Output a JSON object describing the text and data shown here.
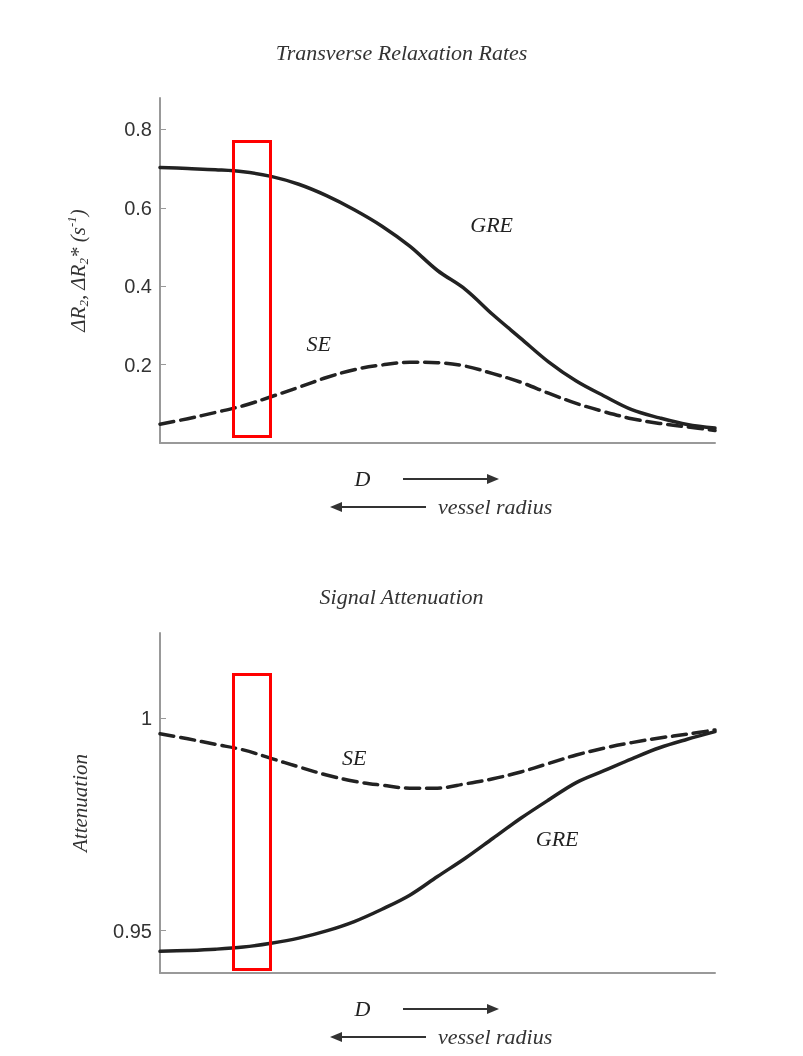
{
  "chart_data": [
    {
      "type": "line",
      "title": "Transverse Relaxation Rates",
      "xlabel": "D",
      "ylabel": "ΔR$_{2}$, ΔR$_{2}$* (s$^{-1}$)",
      "annotations": [
        "vessel radius"
      ],
      "categories": [
        null,
        null,
        null,
        null,
        null,
        null,
        null,
        null,
        null,
        null,
        null,
        null,
        null,
        null,
        null,
        null,
        null,
        null,
        null,
        null,
        null
      ],
      "series": [
        {
          "name": "GRE",
          "color": "#222222",
          "line_style": "solid",
          "values": [
            0.703,
            0.7,
            0.697,
            0.692,
            0.68,
            0.66,
            0.631,
            0.595,
            0.553,
            0.502,
            0.44,
            0.392,
            0.327,
            0.267,
            0.207,
            0.158,
            0.12,
            0.085,
            0.064,
            0.047,
            0.038
          ]
        },
        {
          "name": "SE",
          "color": "#222222",
          "line_style": "dashed",
          "values": [
            0.048,
            0.062,
            0.078,
            0.095,
            0.118,
            0.142,
            0.167,
            0.187,
            0.199,
            0.206,
            0.205,
            0.196,
            0.177,
            0.155,
            0.127,
            0.101,
            0.08,
            0.062,
            0.05,
            0.041,
            0.032
          ]
        }
      ],
      "ylim": [
        0,
        0.88
      ],
      "yticks": [
        0.2,
        0.4,
        0.6,
        0.8
      ],
      "grid": false,
      "legend": false,
      "tick_labels": "y"
    },
    {
      "type": "line",
      "title": "Signal Attenuation",
      "xlabel": "D",
      "ylabel": "Attenuation",
      "annotations": [
        "vessel radius"
      ],
      "categories": [
        null,
        null,
        null,
        null,
        null,
        null,
        null,
        null,
        null,
        null,
        null,
        null,
        null,
        null,
        null,
        null,
        null,
        null,
        null,
        null,
        null
      ],
      "series": [
        {
          "name": "SE",
          "color": "#222222",
          "line_style": "dashed",
          "values": [
            0.9963,
            0.9951,
            0.9938,
            0.9925,
            0.9905,
            0.9885,
            0.9866,
            0.9851,
            0.9842,
            0.9835,
            0.9835,
            0.9845,
            0.9857,
            0.9873,
            0.9893,
            0.9913,
            0.9929,
            0.9942,
            0.9953,
            0.9962,
            0.9972
          ]
        },
        {
          "name": "GRE",
          "color": "#222222",
          "line_style": "solid",
          "values": [
            0.9451,
            0.9453,
            0.9456,
            0.9461,
            0.947,
            0.9482,
            0.9499,
            0.9521,
            0.955,
            0.9583,
            0.9627,
            0.967,
            0.9717,
            0.9764,
            0.9807,
            0.9848,
            0.9876,
            0.9904,
            0.993,
            0.995,
            0.9968
          ]
        }
      ],
      "ylim": [
        0.94,
        1.02
      ],
      "yticks": [
        0.95,
        1
      ],
      "grid": false,
      "legend": false,
      "tick_labels": "y"
    }
  ]
}
